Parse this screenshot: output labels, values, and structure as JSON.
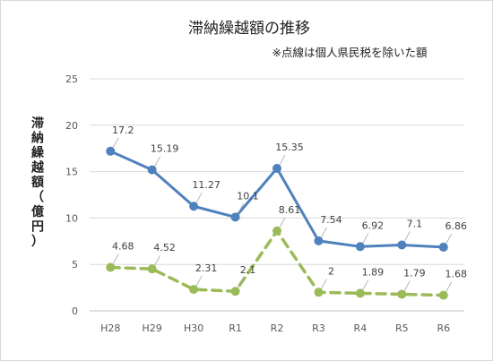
{
  "chart_data": {
    "type": "line",
    "title": "滞納繰越額の推移",
    "subtitle": "※点線は個人県民税を除いた額",
    "ylabel": "滞納繰越額（億円）",
    "xlabel": "",
    "categories": [
      "H28",
      "H29",
      "H30",
      "R1",
      "R2",
      "R3",
      "R4",
      "R5",
      "R6"
    ],
    "ylim": [
      0,
      25
    ],
    "yticks": [
      0,
      5,
      10,
      15,
      20,
      25
    ],
    "grid": true,
    "legend": "none",
    "series": [
      {
        "values": [
          17.2,
          15.19,
          11.27,
          10.1,
          15.35,
          7.54,
          6.92,
          7.1,
          6.86
        ],
        "labels": [
          "17.2",
          "15.19",
          "11.27",
          "10.1",
          "15.35",
          "7.54",
          "6.92",
          "7.1",
          "6.86"
        ],
        "color": "#4f81bd",
        "style": "solid"
      },
      {
        "values": [
          4.68,
          4.52,
          2.31,
          2.1,
          8.61,
          2.0,
          1.89,
          1.79,
          1.68
        ],
        "labels": [
          "4.68",
          "4.52",
          "2.31",
          "2.1",
          "8.61",
          "2",
          "1.89",
          "1.79",
          "1.68"
        ],
        "color": "#9bbb59",
        "style": "dashed"
      }
    ]
  }
}
